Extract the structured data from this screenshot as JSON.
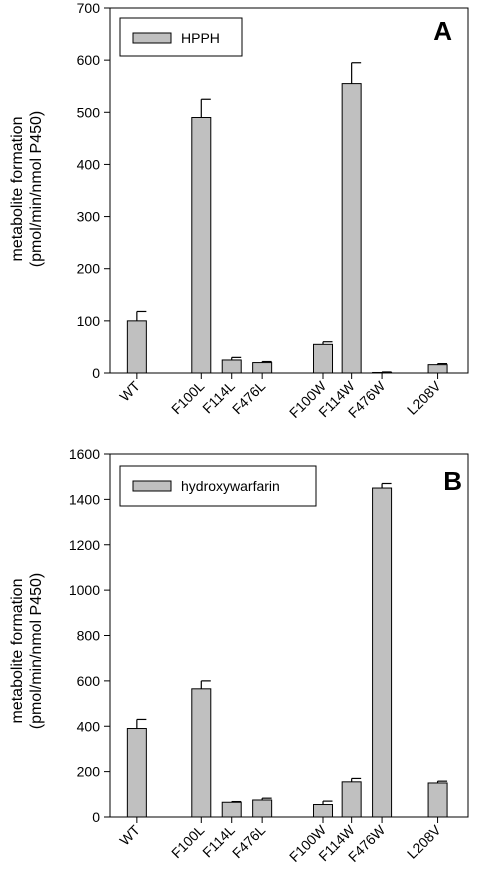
{
  "chart_data": [
    {
      "type": "bar",
      "panel_label": "A",
      "ylabel_line1": "metabolite formation",
      "ylabel_line2": "(pmol/min/nmol P450)",
      "ylim": [
        0,
        700
      ],
      "yticks": [
        0,
        100,
        200,
        300,
        400,
        500,
        600,
        700
      ],
      "categories": [
        "WT",
        "F100L",
        "F114L",
        "F476L",
        "F100W",
        "F114W",
        "F476W",
        "L208V"
      ],
      "series": [
        {
          "name": "HPPH",
          "values": [
            100,
            490,
            25,
            20,
            55,
            555,
            1,
            16
          ],
          "errors": [
            18,
            35,
            5,
            2,
            5,
            40,
            1,
            2
          ]
        }
      ],
      "legend_position": "top-left"
    },
    {
      "type": "bar",
      "panel_label": "B",
      "ylabel_line1": "metabolite formation",
      "ylabel_line2": "(pmol/min/nmol P450)",
      "ylim": [
        0,
        1600
      ],
      "yticks": [
        0,
        200,
        400,
        600,
        800,
        1000,
        1200,
        1400,
        1600
      ],
      "categories": [
        "WT",
        "F100L",
        "F114L",
        "F476L",
        "F100W",
        "F114W",
        "F476W",
        "L208V"
      ],
      "series": [
        {
          "name": "hydroxywarfarin",
          "values": [
            390,
            565,
            65,
            75,
            55,
            155,
            1450,
            150
          ],
          "errors": [
            40,
            35,
            3,
            8,
            15,
            15,
            20,
            8
          ]
        }
      ],
      "legend_position": "top-left"
    }
  ],
  "style": {
    "bar_fill": "#c0c0c0",
    "bar_stroke": "#000000",
    "axis_color": "#000000"
  }
}
